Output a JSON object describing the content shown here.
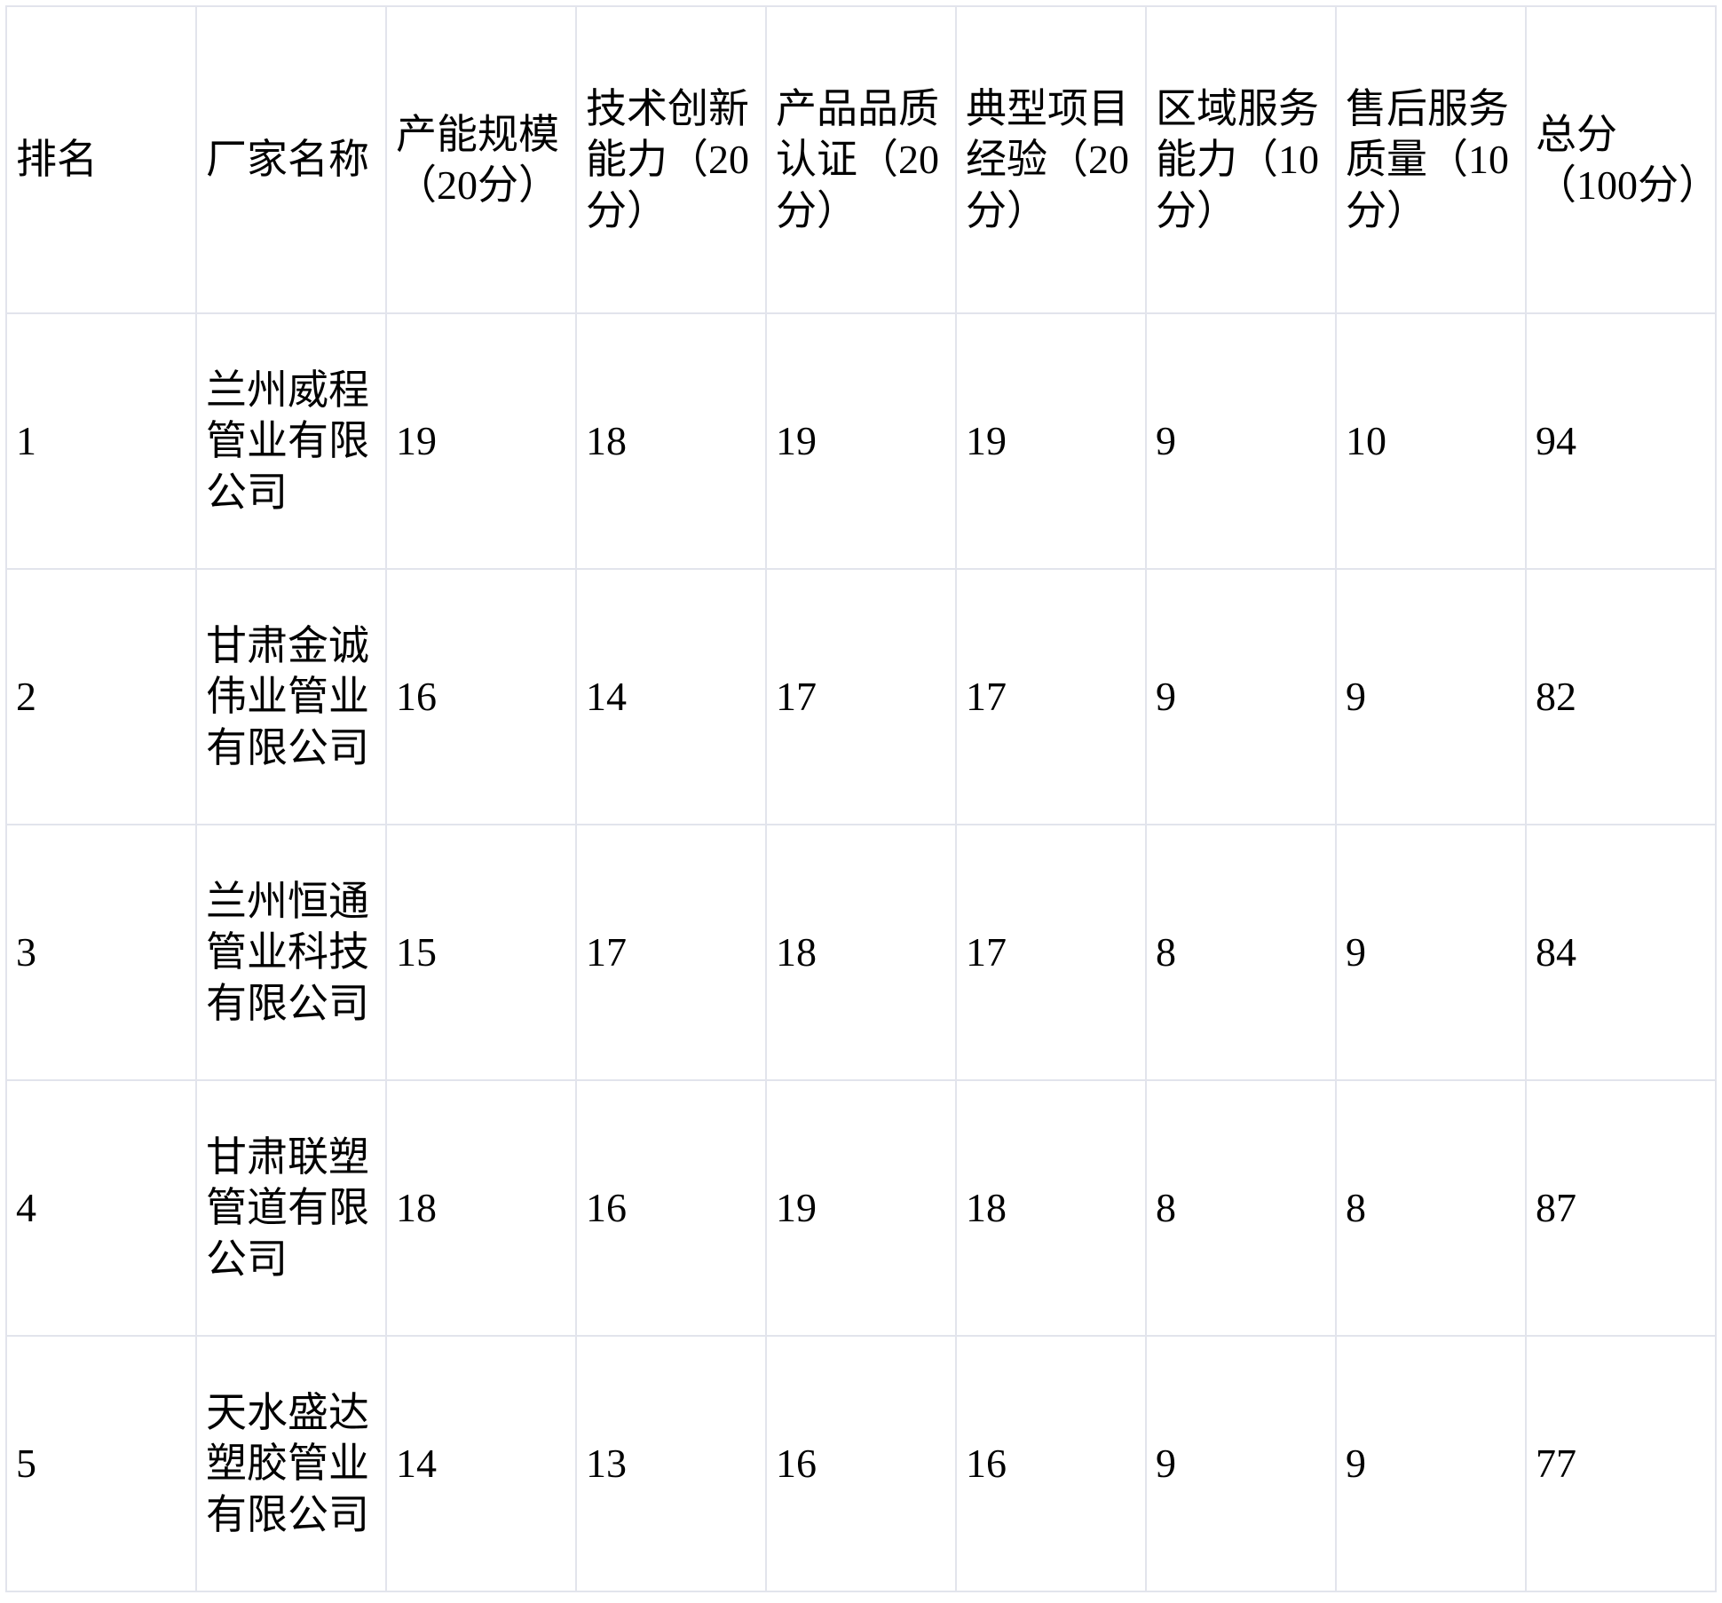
{
  "table": {
    "headers": [
      "排名",
      "厂家名称",
      "产能规模（20分）",
      "技术创新能力（20分）",
      "产品品质认证（20分）",
      "典型项目经验（20分）",
      "区域服务能力（10分）",
      "售后服务质量（10分）",
      "总分（100分）"
    ],
    "rows": [
      {
        "cells": [
          "1",
          "兰州威程管业有限公司",
          "19",
          "18",
          "19",
          "19",
          "9",
          "10",
          "94"
        ]
      },
      {
        "cells": [
          "2",
          "甘肃金诚伟业管业有限公司",
          "16",
          "14",
          "17",
          "17",
          "9",
          "9",
          "82"
        ]
      },
      {
        "cells": [
          "3",
          "兰州恒通管业科技有限公司",
          "15",
          "17",
          "18",
          "17",
          "8",
          "9",
          "84"
        ]
      },
      {
        "cells": [
          "4",
          "甘肃联塑管道有限公司",
          "18",
          "16",
          "19",
          "18",
          "8",
          "8",
          "87"
        ]
      },
      {
        "cells": [
          "5",
          "天水盛达塑胶管业有限公司",
          "14",
          "13",
          "16",
          "16",
          "9",
          "9",
          "77"
        ]
      }
    ]
  },
  "colors": {
    "border": "#e2e4ec",
    "text": "#000000",
    "background": "#ffffff"
  },
  "chart_data": {
    "type": "table",
    "columns": [
      "排名",
      "厂家名称",
      "产能规模（20分）",
      "技术创新能力（20分）",
      "产品品质认证（20分）",
      "典型项目经验（20分）",
      "区域服务能力（10分）",
      "售后服务质量（10分）",
      "总分（100分）"
    ],
    "rows": [
      [
        "1",
        "兰州威程管业有限公司",
        19,
        18,
        19,
        19,
        9,
        10,
        94
      ],
      [
        "2",
        "甘肃金诚伟业管业有限公司",
        16,
        14,
        17,
        17,
        9,
        9,
        82
      ],
      [
        "3",
        "兰州恒通管业科技有限公司",
        15,
        17,
        18,
        17,
        8,
        9,
        84
      ],
      [
        "4",
        "甘肃联塑管道有限公司",
        18,
        16,
        19,
        18,
        8,
        8,
        87
      ],
      [
        "5",
        "天水盛达塑胶管业有限公司",
        14,
        13,
        16,
        16,
        9,
        9,
        77
      ]
    ]
  }
}
